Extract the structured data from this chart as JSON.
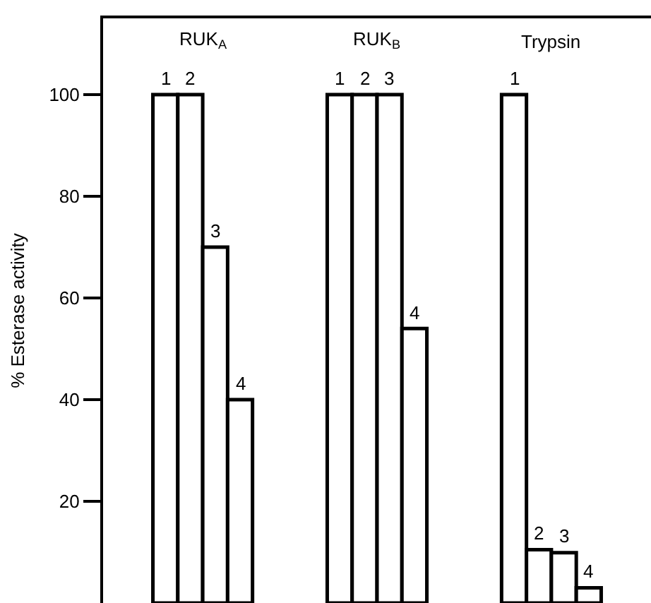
{
  "chart_data": {
    "type": "bar",
    "ylabel": "% Esterase activity",
    "categories": [
      null,
      null,
      "1",
      "2",
      "3",
      "4",
      null,
      null,
      null,
      "1",
      "2",
      "3",
      "4",
      null,
      null,
      null,
      "1",
      "2",
      "3",
      "4",
      null,
      null
    ],
    "series": [
      {
        "name": "RUK$_{A}$",
        "color": "#ffffff",
        "values": [
          null,
          null,
          100,
          100,
          70,
          40,
          null,
          null,
          null,
          null,
          null,
          null,
          null,
          null,
          null,
          null,
          null,
          null,
          null,
          null,
          null,
          null
        ]
      },
      {
        "name": "RUK$_{B}$",
        "color": "#ffffff",
        "values": [
          null,
          null,
          null,
          null,
          null,
          null,
          null,
          null,
          null,
          100,
          100,
          100,
          54,
          null,
          null,
          null,
          null,
          null,
          null,
          null,
          null,
          null
        ]
      },
      {
        "name": "Trypsin",
        "color": "#ffffff",
        "values": [
          null,
          null,
          null,
          null,
          null,
          null,
          null,
          null,
          null,
          null,
          null,
          null,
          null,
          null,
          null,
          null,
          100,
          10.5,
          9.9,
          3,
          null,
          null
        ]
      }
    ],
    "ylim": [
      0,
      115
    ],
    "yticks": [
      20,
      40,
      60,
      80,
      100
    ],
    "grid": false,
    "legend": false
  }
}
